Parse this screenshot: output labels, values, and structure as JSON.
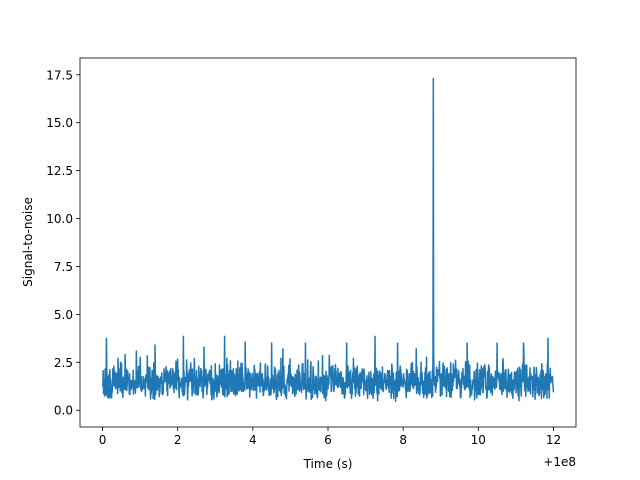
{
  "chart_data": {
    "type": "line",
    "title": "",
    "xlabel": "Time (s)",
    "ylabel": "Signal-to-noise",
    "x_offset_label": "+1e8",
    "xlim": [
      -0.6,
      12.6
    ],
    "ylim": [
      -0.875,
      18.375
    ],
    "xticks": [
      0,
      2,
      4,
      6,
      8,
      10,
      12
    ],
    "xtick_labels": [
      "0",
      "2",
      "4",
      "6",
      "8",
      "10",
      "12"
    ],
    "yticks": [
      0.0,
      2.5,
      5.0,
      7.5,
      10.0,
      12.5,
      15.0,
      17.5
    ],
    "ytick_labels": [
      "0.0",
      "2.5",
      "5.0",
      "7.5",
      "10.0",
      "12.5",
      "15.0",
      "17.5"
    ],
    "grid": false,
    "legend": "none",
    "color": "#1f77b4",
    "series": [
      {
        "x_range": [
          0,
          12
        ],
        "noise_band": [
          0.05,
          3.2
        ],
        "noise_peaks": [
          {
            "x": 0.1,
            "y": 3.75
          },
          {
            "x": 0.6,
            "y": 2.9
          },
          {
            "x": 1.4,
            "y": 3.4
          },
          {
            "x": 2.15,
            "y": 3.85
          },
          {
            "x": 2.7,
            "y": 3.3
          },
          {
            "x": 3.25,
            "y": 3.85
          },
          {
            "x": 3.8,
            "y": 3.55
          },
          {
            "x": 4.5,
            "y": 3.5
          },
          {
            "x": 4.8,
            "y": 3.2
          },
          {
            "x": 5.4,
            "y": 3.5
          },
          {
            "x": 6.5,
            "y": 3.5
          },
          {
            "x": 7.25,
            "y": 3.85
          },
          {
            "x": 7.85,
            "y": 3.5
          },
          {
            "x": 8.35,
            "y": 3.2
          },
          {
            "x": 9.7,
            "y": 3.5
          },
          {
            "x": 10.5,
            "y": 3.5
          },
          {
            "x": 11.2,
            "y": 3.5
          },
          {
            "x": 11.85,
            "y": 3.75
          }
        ],
        "spike": {
          "x": 8.8,
          "y": 17.3
        }
      }
    ]
  }
}
